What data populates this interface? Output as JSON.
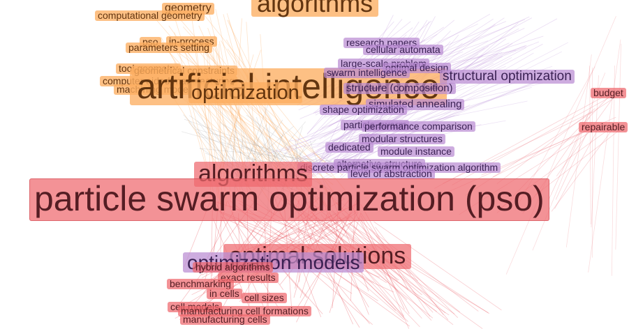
{
  "colors": {
    "orange": "#fdae61",
    "purple": "#ba8cd2",
    "red": "#ee686e",
    "edge_orange": "#fdb067",
    "edge_purple": "#b98cd6",
    "edge_red": "#e8505a",
    "edge_gray": "#9a9a9a"
  },
  "nodes": {
    "computational_geometry": "computational geometry",
    "geometry_top": "geometry",
    "algorithms_top": "algorithms",
    "pso_small": "pso",
    "in_process": "in-process",
    "parameters_setting": "parameters setting",
    "tool_geometry": "tool geometry",
    "geometrical_constraints": "geometrical constraints",
    "computer_aided_manufacturing": "computer aided manufacturing",
    "machining_model": "machining model",
    "artificial_intelligence": "artificial intelligence",
    "optimization": "optimization",
    "research_papers": "research papers",
    "cellular_automata": "cellular automata",
    "large_scale_problem": "large-scale problem",
    "optimal_design": "optimal design",
    "swarm_intelligence": "swarm intelligence",
    "structural_optimization": "structural optimization",
    "structure_composition": "structure (composition)",
    "simulated_annealing": "simulated annealing",
    "shape_optimization": "shape optimization",
    "particle_swarm": "particle swarm",
    "performance_comparison": "performance comparison",
    "modular_structures": "modular structures",
    "dedicated": "dedicated",
    "module_instance": "module instance",
    "alternative_structure": "alternative structure",
    "level_of_abstraction": "level of abstraction",
    "discrete_pso_algorithm": "discrete particle swarm optimization algorithm",
    "budget": "budget",
    "repairable": "repairable",
    "algorithms": "algorithms",
    "pso_main": "particle swarm optimization (pso)",
    "optimal_solutions": "optimal solutions",
    "optimization_models": "optimization models",
    "hybrid_algorithms": "hybrid algorithms",
    "exact_results": "exact results",
    "benchmarking": "benchmarking",
    "in_cells": "in cells",
    "cell_sizes": "cell sizes",
    "cell_models": "cell models",
    "manufacturing_cell_formations": "manufacturing cell formations",
    "manufacturing_cells": "manufacturing cells"
  }
}
